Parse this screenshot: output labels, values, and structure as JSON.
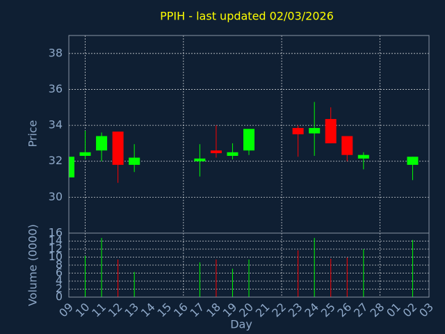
{
  "chart_data": [
    {
      "type": "candlestick",
      "title": "PPIH - last updated 02/03/2026",
      "ylabel": "Price",
      "open": [
        31.1,
        32.3,
        32.6,
        33.65,
        31.8,
        null,
        null,
        null,
        32.0,
        32.6,
        32.3,
        32.6,
        null,
        null,
        33.85,
        33.55,
        34.35,
        33.4,
        32.15,
        null,
        null,
        31.8,
        null
      ],
      "high": [
        32.25,
        33.7,
        33.6,
        33.65,
        32.95,
        null,
        null,
        null,
        32.95,
        34.0,
        33.0,
        33.8,
        null,
        null,
        34.0,
        35.3,
        35.0,
        33.4,
        32.5,
        null,
        null,
        32.25,
        null
      ],
      "low": [
        31.1,
        32.1,
        32.0,
        30.8,
        31.4,
        null,
        null,
        null,
        31.15,
        32.2,
        32.1,
        32.35,
        null,
        null,
        32.25,
        32.3,
        33.0,
        32.0,
        31.55,
        null,
        null,
        30.95,
        null
      ],
      "close": [
        32.25,
        32.5,
        33.4,
        31.8,
        32.2,
        null,
        null,
        null,
        32.15,
        32.45,
        32.5,
        33.8,
        null,
        null,
        33.5,
        33.85,
        33.0,
        32.35,
        32.35,
        null,
        null,
        32.25,
        null
      ],
      "up_color": "#00ff00",
      "down_color": "#ff0000",
      "ylim": [
        28,
        39
      ],
      "yticks": [
        30,
        32,
        34,
        36,
        38
      ],
      "grid": true
    },
    {
      "type": "bar",
      "ylabel": "Volume (0000)",
      "xlabel": "Day",
      "categories": [
        "09",
        "10",
        "11",
        "12",
        "13",
        "14",
        "15",
        "16",
        "17",
        "18",
        "19",
        "20",
        "21",
        "22",
        "23",
        "24",
        "25",
        "26",
        "27",
        "28",
        "01",
        "02",
        "03"
      ],
      "values": [
        9,
        10.3,
        14.8,
        9.4,
        6.3,
        null,
        null,
        null,
        8.7,
        9.4,
        7.1,
        9.4,
        null,
        null,
        11.7,
        14.8,
        9.6,
        9.9,
        12,
        null,
        null,
        14.3,
        null
      ],
      "ylim": [
        0,
        16
      ],
      "yticks": [
        0,
        2,
        4,
        6,
        8,
        10,
        12,
        14,
        16
      ],
      "grid": true
    }
  ]
}
